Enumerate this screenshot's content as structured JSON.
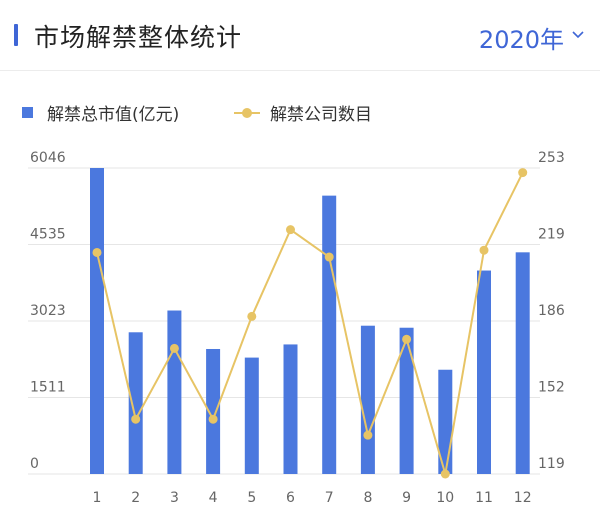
{
  "header": {
    "title": "市场解禁整体统计",
    "year_label": "2020年"
  },
  "colors": {
    "accent": "#3f66d6",
    "bar": "#4b78de",
    "line": "#e7c465",
    "grid": "#e6e6e6"
  },
  "icons": {
    "year_dropdown": "chevron-down-icon"
  },
  "chart_data": {
    "type": "bar+line",
    "categories": [
      "1",
      "2",
      "3",
      "4",
      "5",
      "6",
      "7",
      "8",
      "9",
      "10",
      "11",
      "12"
    ],
    "series": [
      {
        "name": "解禁总市值(亿元)",
        "type": "bar",
        "axis": "left",
        "values": [
          6046,
          2800,
          3230,
          2470,
          2300,
          2560,
          5500,
          2930,
          2890,
          2060,
          4020,
          4380
        ]
      },
      {
        "name": "解禁公司数目",
        "type": "line",
        "axis": "right",
        "values": [
          216,
          143,
          174,
          143,
          188,
          226,
          214,
          136,
          178,
          119,
          217,
          251
        ]
      }
    ],
    "y_left": {
      "ylim": [
        0,
        6046
      ],
      "ticks": [
        "0",
        "1511",
        "3023",
        "4535",
        "6046"
      ]
    },
    "y_right": {
      "ylim": [
        119,
        253
      ],
      "ticks": [
        "119",
        "152",
        "186",
        "219",
        "253"
      ]
    },
    "grid": true,
    "legend_position": "top-left"
  }
}
